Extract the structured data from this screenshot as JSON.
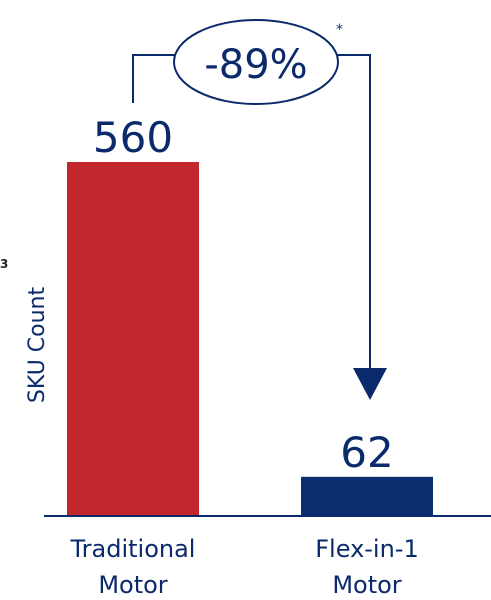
{
  "chart_data": {
    "type": "bar",
    "categories": [
      "Traditional Motor",
      "Flex-in-1 Motor"
    ],
    "category_lines": [
      [
        "Traditional",
        "Motor"
      ],
      [
        "Flex-in-1",
        "Motor"
      ]
    ],
    "values": [
      560,
      62
    ],
    "value_labels": [
      "560",
      "62"
    ],
    "bar_colors": [
      "#c1272d",
      "#0b2f6e"
    ],
    "ylabel": "SKU Count",
    "ylim": [
      0,
      560
    ],
    "grid": false,
    "annotation": {
      "text": "-89%",
      "footnote_marker": "*",
      "color": "#0b2a6b"
    },
    "stray_mark": "3"
  }
}
